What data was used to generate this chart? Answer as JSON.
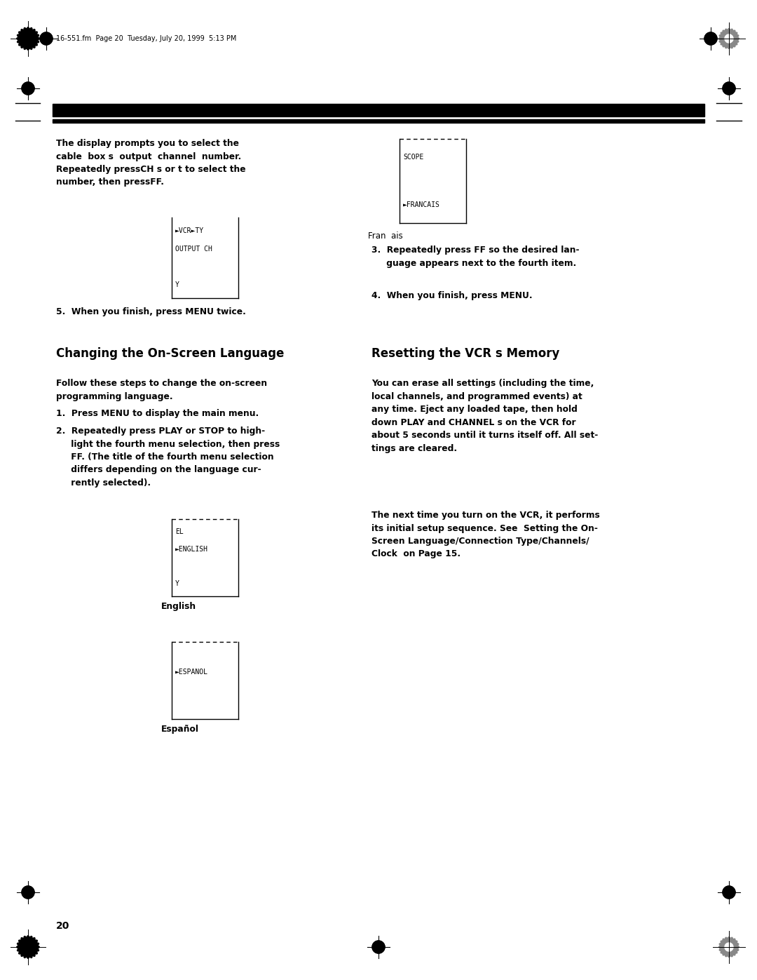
{
  "page_bg": "#ffffff",
  "fig_w": 10.8,
  "fig_h": 13.97,
  "dpi": 100,
  "header_text": "16-551.fm  Page 20  Tuesday, July 20, 1999  5:13 PM",
  "page_number": "20",
  "intro_text": "The display prompts you to select the\ncable  box s  output  channel  number.\nRepeatedly pressCH s or t to select the\nnumber, then pressFF.",
  "item3": "3.  Repeatedly press FF so the desired lan-\n     guage appears next to the fourth item.",
  "item4": "4.  When you finish, press MENU.",
  "item5": "5.  When you finish, press MENU twice.",
  "sec1_title": "Changing the On-Screen Language",
  "sec1_intro": "Follow these steps to change the on-screen\nprogramming language.",
  "sec1_item1": "1.  Press MENU to display the main menu.",
  "sec1_item2": "2.  Repeatedly press PLAY or STOP to high-\n     light the fourth menu selection, then press\n     FF. (The title of the fourth menu selection\n     differs depending on the language cur-\n     rently selected).",
  "sec1_english_caption": "English",
  "sec1_espanol_caption": "Español",
  "sec2_title": "Resetting the VCR s Memory",
  "sec2_para1": "You can erase all settings (including the time,\nlocal channels, and programmed events) at\nany time. Eject any loaded tape, then hold\ndown PLAY and CHANNEL s on the VCR for\nabout 5 seconds until it turns itself off. All set-\ntings are cleared.",
  "sec2_para2": "The next time you turn on the VCR, it performs\nits initial setup sequence. See  Setting the On-\nScreen Language/Connection Type/Channels/\nClock  on Page 15.",
  "francais_caption": "Fran  ais"
}
